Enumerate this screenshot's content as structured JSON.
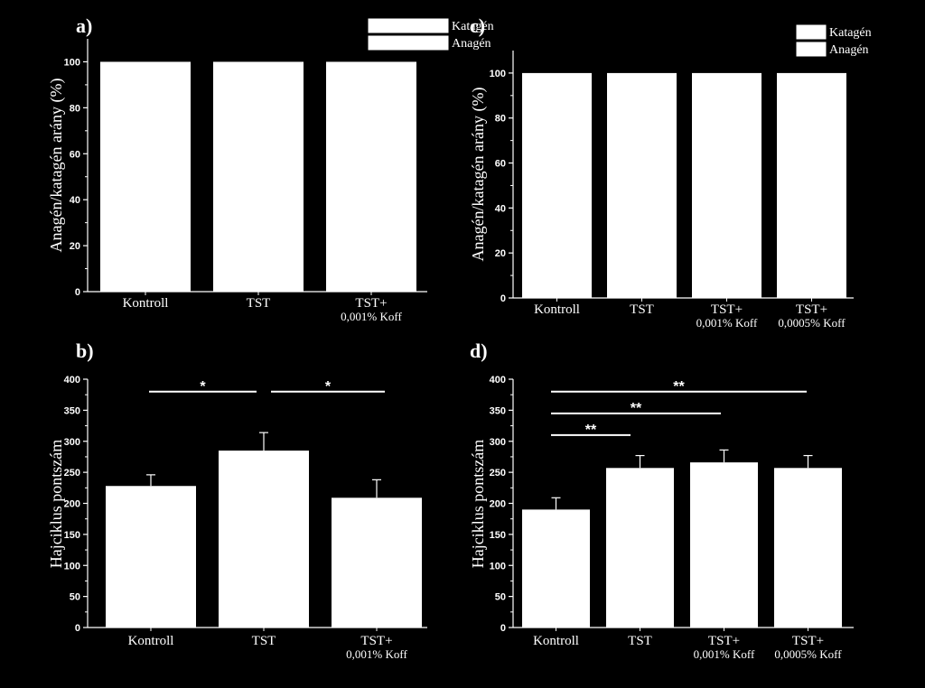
{
  "chart_data": [
    {
      "panel": "a)",
      "type": "bar",
      "stacked": true,
      "categories": [
        [
          "Kontroll"
        ],
        [
          "TST"
        ],
        [
          "TST+",
          "0,001% Koff"
        ]
      ],
      "series": [
        {
          "name": "Katagén",
          "values": [
            0,
            0,
            0
          ]
        },
        {
          "name": "Anagén",
          "values": [
            100,
            100,
            100
          ]
        }
      ],
      "ylabel": "Anagén/katagén arány (%)",
      "ylim": [
        0,
        110
      ],
      "yticks": [
        0,
        20,
        40,
        60,
        80,
        100
      ],
      "legend": "top-right"
    },
    {
      "panel": "b)",
      "type": "bar",
      "categories": [
        [
          "Kontroll"
        ],
        [
          "TST"
        ],
        [
          "TST+",
          "0,001% Koff"
        ]
      ],
      "values": [
        228,
        285,
        209
      ],
      "errors": [
        18,
        29,
        29
      ],
      "ylabel": "Hajciklus pontszám",
      "ylim": [
        0,
        400
      ],
      "yticks": [
        0,
        50,
        100,
        150,
        200,
        250,
        300,
        350,
        400
      ],
      "significance": [
        {
          "from": 0,
          "to": 1,
          "label": "*",
          "y": 380
        },
        {
          "from": 1,
          "to": 2,
          "label": "*",
          "y": 380
        }
      ]
    },
    {
      "panel": "c)",
      "type": "bar",
      "stacked": true,
      "categories": [
        [
          "Kontroll"
        ],
        [
          "TST"
        ],
        [
          "TST+",
          "0,001% Koff"
        ],
        [
          "TST+",
          "0,0005% Koff"
        ]
      ],
      "series": [
        {
          "name": "Katagén",
          "values": [
            0,
            0,
            0,
            0
          ]
        },
        {
          "name": "Anagén",
          "values": [
            100,
            100,
            100,
            100
          ]
        }
      ],
      "ylabel": "Anagén/katagén arány (%)",
      "ylim": [
        0,
        110
      ],
      "yticks": [
        0,
        20,
        40,
        60,
        80,
        100
      ],
      "legend": "top-right"
    },
    {
      "panel": "d)",
      "type": "bar",
      "categories": [
        [
          "Kontroll"
        ],
        [
          "TST"
        ],
        [
          "TST+",
          "0,001% Koff"
        ],
        [
          "TST+",
          "0,0005% Koff"
        ]
      ],
      "values": [
        190,
        257,
        266,
        257
      ],
      "errors": [
        19,
        20,
        20,
        20
      ],
      "ylabel": "Hajciklus pontszám",
      "ylim": [
        0,
        400
      ],
      "yticks": [
        0,
        50,
        100,
        150,
        200,
        250,
        300,
        350,
        400
      ],
      "significance": [
        {
          "from": 0,
          "to": 3,
          "label": "**",
          "y": 380
        },
        {
          "from": 0,
          "to": 2,
          "label": "**",
          "y": 345
        },
        {
          "from": 0,
          "to": 1,
          "label": "**",
          "y": 310
        }
      ]
    }
  ]
}
